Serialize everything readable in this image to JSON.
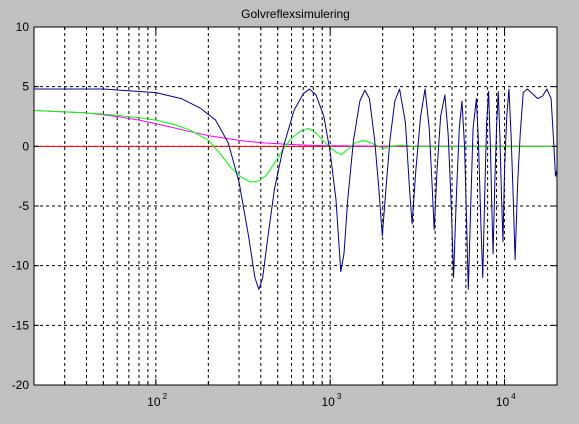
{
  "window": {
    "background": "#c0c0c0",
    "plot_background": "#ffffff"
  },
  "chart_data": {
    "type": "line",
    "title": "Golvreflexsimulering",
    "xlabel": "",
    "ylabel": "",
    "x_scale": "log",
    "xlim": [
      20,
      20000
    ],
    "ylim": [
      -20,
      10
    ],
    "grid": true,
    "legend": "none",
    "x_ticks": [
      {
        "value": 100,
        "base": "10",
        "exp": "2"
      },
      {
        "value": 1000,
        "base": "10",
        "exp": "3"
      },
      {
        "value": 10000,
        "base": "10",
        "exp": "4"
      }
    ],
    "y_ticks": [
      {
        "value": 10,
        "label": "10"
      },
      {
        "value": 5,
        "label": "5"
      },
      {
        "value": 0,
        "label": "0"
      },
      {
        "value": -5,
        "label": "-5"
      },
      {
        "value": -10,
        "label": "-10"
      },
      {
        "value": -15,
        "label": "-15"
      },
      {
        "value": -20,
        "label": "-20"
      }
    ],
    "series": [
      {
        "color": "#ff0000",
        "points": [
          [
            20,
            0
          ],
          [
            20000,
            0
          ]
        ]
      },
      {
        "color": "#ff00ff",
        "points": [
          [
            20,
            3.0
          ],
          [
            40,
            2.8
          ],
          [
            60,
            2.5
          ],
          [
            80,
            2.2
          ],
          [
            100,
            1.9
          ],
          [
            150,
            1.3
          ],
          [
            200,
            0.9
          ],
          [
            300,
            0.5
          ],
          [
            400,
            0.3
          ],
          [
            600,
            0.15
          ],
          [
            800,
            0.08
          ],
          [
            1000,
            0.05
          ],
          [
            2000,
            0.02
          ],
          [
            20000,
            0
          ]
        ]
      },
      {
        "color": "#00ff00",
        "points": [
          [
            20,
            3.0
          ],
          [
            40,
            2.8
          ],
          [
            60,
            2.6
          ],
          [
            80,
            2.4
          ],
          [
            100,
            2.2
          ],
          [
            130,
            1.8
          ],
          [
            160,
            1.3
          ],
          [
            200,
            0.5
          ],
          [
            230,
            -0.5
          ],
          [
            270,
            -1.8
          ],
          [
            310,
            -2.6
          ],
          [
            350,
            -3.0
          ],
          [
            390,
            -2.9
          ],
          [
            430,
            -2.4
          ],
          [
            480,
            -1.4
          ],
          [
            540,
            -0.2
          ],
          [
            600,
            0.7
          ],
          [
            680,
            1.3
          ],
          [
            750,
            1.5
          ],
          [
            830,
            1.1
          ],
          [
            920,
            0.4
          ],
          [
            1000,
            -0.1
          ],
          [
            1080,
            -0.5
          ],
          [
            1160,
            -0.7
          ],
          [
            1250,
            -0.3
          ],
          [
            1400,
            0.3
          ],
          [
            1550,
            0.5
          ],
          [
            1700,
            0.3
          ],
          [
            1900,
            0.0
          ],
          [
            2000,
            -0.2
          ],
          [
            2200,
            0.0
          ],
          [
            2600,
            0.1
          ],
          [
            3000,
            0.0
          ],
          [
            5000,
            0.0
          ],
          [
            20000,
            0.0
          ]
        ]
      },
      {
        "color": "#00008b",
        "points": [
          [
            20,
            4.8
          ],
          [
            50,
            4.8
          ],
          [
            80,
            4.6
          ],
          [
            100,
            4.5
          ],
          [
            140,
            4.0
          ],
          [
            180,
            3.2
          ],
          [
            220,
            2.2
          ],
          [
            260,
            0.3
          ],
          [
            300,
            -3.0
          ],
          [
            340,
            -7.5
          ],
          [
            370,
            -11.0
          ],
          [
            390,
            -12.0
          ],
          [
            410,
            -11.0
          ],
          [
            440,
            -7.5
          ],
          [
            480,
            -3.5
          ],
          [
            540,
            0.0
          ],
          [
            620,
            3.0
          ],
          [
            700,
            4.4
          ],
          [
            760,
            4.8
          ],
          [
            830,
            4.3
          ],
          [
            920,
            2.5
          ],
          [
            1000,
            -0.5
          ],
          [
            1080,
            -4.5
          ],
          [
            1150,
            -10.5
          ],
          [
            1200,
            -9.0
          ],
          [
            1260,
            -4.5
          ],
          [
            1360,
            0.5
          ],
          [
            1480,
            3.8
          ],
          [
            1580,
            4.7
          ],
          [
            1680,
            4.0
          ],
          [
            1800,
            0.5
          ],
          [
            1900,
            -3.5
          ],
          [
            1990,
            -7.5
          ],
          [
            2090,
            -3.5
          ],
          [
            2200,
            0.5
          ],
          [
            2350,
            3.8
          ],
          [
            2500,
            4.8
          ],
          [
            2700,
            2.0
          ],
          [
            2850,
            -3.5
          ],
          [
            2950,
            -6.5
          ],
          [
            3100,
            -2.0
          ],
          [
            3300,
            2.5
          ],
          [
            3500,
            4.8
          ],
          [
            3700,
            1.5
          ],
          [
            3850,
            -3.5
          ],
          [
            3950,
            -7.0
          ],
          [
            4100,
            -2.0
          ],
          [
            4300,
            2.5
          ],
          [
            4550,
            4.3
          ],
          [
            4750,
            1.0
          ],
          [
            4950,
            -5.0
          ],
          [
            5100,
            -11.0
          ],
          [
            5300,
            -4.0
          ],
          [
            5500,
            1.5
          ],
          [
            5700,
            3.8
          ],
          [
            5900,
            0.0
          ],
          [
            6050,
            -6.0
          ],
          [
            6200,
            -12.0
          ],
          [
            6400,
            -5.0
          ],
          [
            6600,
            1.5
          ],
          [
            6900,
            4.0
          ],
          [
            7100,
            0.0
          ],
          [
            7300,
            -6.0
          ],
          [
            7500,
            -11.0
          ],
          [
            7700,
            -4.0
          ],
          [
            7900,
            2.0
          ],
          [
            8100,
            4.6
          ],
          [
            8300,
            0.0
          ],
          [
            8450,
            -5.0
          ],
          [
            8600,
            -9.0
          ],
          [
            8800,
            -3.0
          ],
          [
            9000,
            1.5
          ],
          [
            9200,
            4.6
          ],
          [
            9400,
            1.0
          ],
          [
            9600,
            -4.0
          ],
          [
            9800,
            -8.0
          ],
          [
            10000,
            -2.0
          ],
          [
            10300,
            2.5
          ],
          [
            10600,
            4.8
          ],
          [
            10900,
            1.0
          ],
          [
            11200,
            -4.0
          ],
          [
            11500,
            -9.5
          ],
          [
            11900,
            -3.0
          ],
          [
            12300,
            1.0
          ],
          [
            12800,
            4.5
          ],
          [
            13500,
            4.8
          ],
          [
            14500,
            4.4
          ],
          [
            15500,
            4.0
          ],
          [
            16500,
            4.2
          ],
          [
            17500,
            4.8
          ],
          [
            18500,
            4.0
          ],
          [
            19200,
            0.0
          ],
          [
            19600,
            -2.5
          ],
          [
            20000,
            -2.0
          ]
        ]
      }
    ]
  }
}
